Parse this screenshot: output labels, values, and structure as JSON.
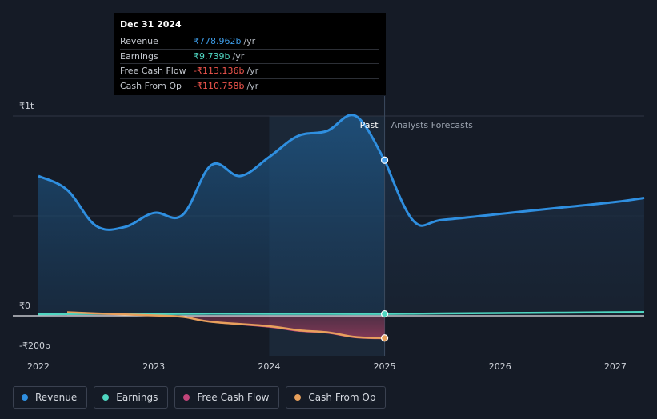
{
  "colors": {
    "revenue": "#2f8fe0",
    "earnings": "#4fd6c1",
    "free_cash_flow": "#c2457a",
    "cash_from_op": "#e8a05c",
    "background": "#151b26",
    "past_shade": "#1b2838"
  },
  "tooltip": {
    "date": "Dec 31 2024",
    "rows": [
      {
        "label": "Revenue",
        "value": "₹778.962b",
        "unit": "/yr",
        "color": "#3d9be6"
      },
      {
        "label": "Earnings",
        "value": "₹9.739b",
        "unit": "/yr",
        "color": "#4fd6c1"
      },
      {
        "label": "Free Cash Flow",
        "value": "-₹113.136b",
        "unit": "/yr",
        "color": "#f0554d"
      },
      {
        "label": "Cash From Op",
        "value": "-₹110.758b",
        "unit": "/yr",
        "color": "#f0554d"
      }
    ]
  },
  "labels": {
    "past": "Past",
    "forecast": "Analysts Forecasts"
  },
  "legend": [
    {
      "label": "Revenue",
      "color": "#2f8fe0"
    },
    {
      "label": "Earnings",
      "color": "#4fd6c1"
    },
    {
      "label": "Free Cash Flow",
      "color": "#c2457a"
    },
    {
      "label": "Cash From Op",
      "color": "#e8a05c"
    }
  ],
  "chart_data": {
    "type": "line",
    "y_tick_labels": [
      {
        "value": 1000,
        "label": "₹1t"
      },
      {
        "value": 0,
        "label": "₹0"
      },
      {
        "value": -200,
        "label": "-₹200b"
      }
    ],
    "x_tick_labels": [
      "2022",
      "2023",
      "2024",
      "2025",
      "2026",
      "2027"
    ],
    "x_range": [
      2022.0,
      2027.25
    ],
    "y_range": [
      -200,
      1000
    ],
    "divider_x": 2025.0,
    "highlight_start_x": 2024.0,
    "series": [
      {
        "name": "Revenue",
        "key": "revenue",
        "fill": true,
        "points_past": [
          [
            2022.0,
            700
          ],
          [
            2022.25,
            630
          ],
          [
            2022.5,
            450
          ],
          [
            2022.75,
            445
          ],
          [
            2023.0,
            515
          ],
          [
            2023.25,
            505
          ],
          [
            2023.5,
            755
          ],
          [
            2023.75,
            700
          ],
          [
            2024.0,
            795
          ],
          [
            2024.25,
            900
          ],
          [
            2024.5,
            925
          ],
          [
            2024.75,
            1000
          ],
          [
            2025.0,
            779
          ]
        ],
        "points_forecast": [
          [
            2025.0,
            779
          ],
          [
            2025.25,
            475
          ],
          [
            2025.5,
            480
          ],
          [
            2026.0,
            510
          ],
          [
            2026.5,
            540
          ],
          [
            2027.0,
            570
          ],
          [
            2027.25,
            590
          ]
        ]
      },
      {
        "name": "Earnings",
        "key": "earnings",
        "fill": false,
        "points_past": [
          [
            2022.0,
            8
          ],
          [
            2022.5,
            10
          ],
          [
            2023.0,
            9
          ],
          [
            2023.5,
            11
          ],
          [
            2024.0,
            10
          ],
          [
            2024.5,
            10
          ],
          [
            2025.0,
            9.7
          ]
        ],
        "points_forecast": [
          [
            2025.0,
            9.7
          ],
          [
            2025.5,
            12
          ],
          [
            2026.0,
            14
          ],
          [
            2026.5,
            16
          ],
          [
            2027.0,
            18
          ],
          [
            2027.25,
            19
          ]
        ]
      },
      {
        "name": "Free Cash Flow",
        "key": "free_cash_flow",
        "fill": true,
        "points_past": [
          [
            2022.25,
            18
          ],
          [
            2022.5,
            12
          ],
          [
            2023.0,
            2
          ],
          [
            2023.25,
            -5
          ],
          [
            2023.5,
            -30
          ],
          [
            2024.0,
            -55
          ],
          [
            2024.25,
            -75
          ],
          [
            2024.5,
            -85
          ],
          [
            2024.75,
            -108
          ],
          [
            2025.0,
            -113
          ]
        ],
        "points_forecast": []
      },
      {
        "name": "Cash From Op",
        "key": "cash_from_op",
        "fill": false,
        "points_past": [
          [
            2022.25,
            18
          ],
          [
            2022.5,
            12
          ],
          [
            2023.0,
            2
          ],
          [
            2023.25,
            -5
          ],
          [
            2023.5,
            -30
          ],
          [
            2024.0,
            -52
          ],
          [
            2024.25,
            -72
          ],
          [
            2024.5,
            -82
          ],
          [
            2024.75,
            -106
          ],
          [
            2025.0,
            -111
          ]
        ],
        "points_forecast": []
      }
    ]
  }
}
